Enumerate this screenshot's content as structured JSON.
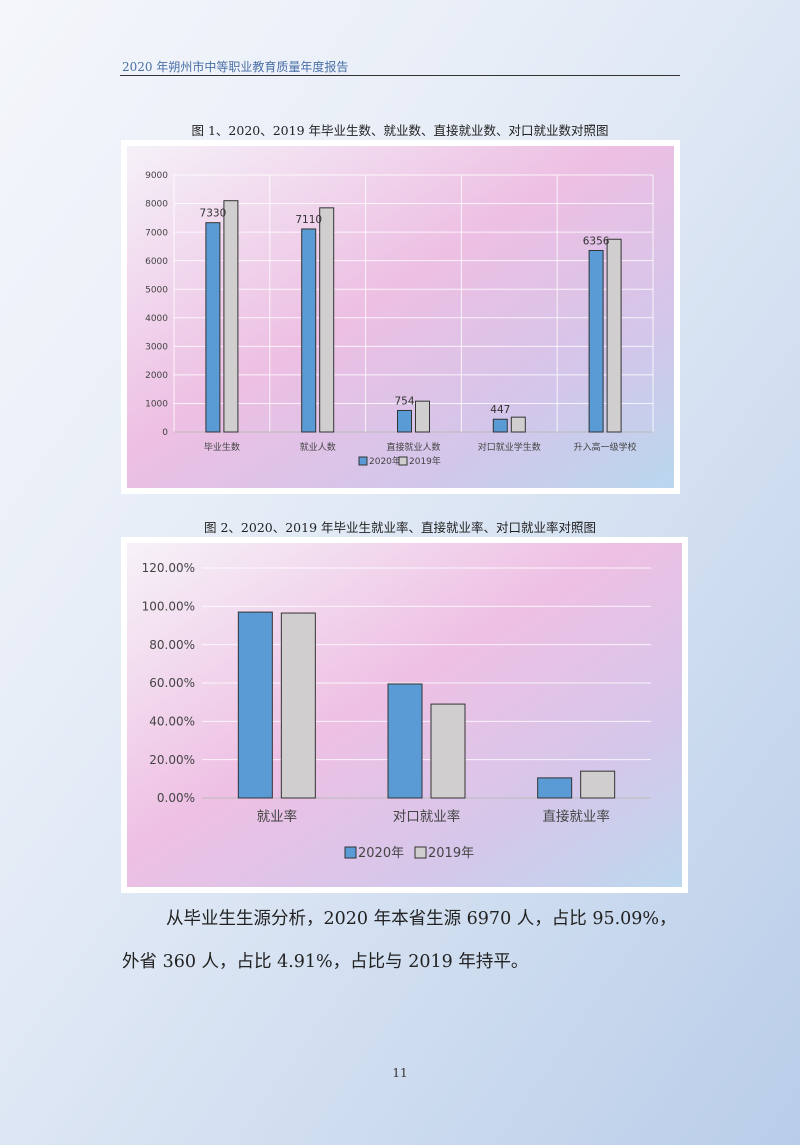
{
  "header": {
    "title": "2020 年朔州市中等职业教育质量年度报告"
  },
  "figure1": {
    "caption": "图 1、2020、2019 年毕业生数、就业数、直接就业数、对口就业数对照图"
  },
  "figure2": {
    "caption": "图 2、2020、2019 年毕业生就业率、直接就业率、对口就业率对照图"
  },
  "body": {
    "line1": "从毕业生生源分析，2020 年本省生源 6970 人，占比 95.09%，",
    "line2": "外省 360 人，占比 4.91%，占比与 2019 年持平。"
  },
  "footer": {
    "page_number": "11"
  },
  "colors": {
    "series_2020": "#5b9bd5",
    "series_2019": "#d0cece",
    "header_text": "#4a6fa5"
  },
  "chart_data": [
    {
      "type": "bar",
      "categories": [
        "毕业生数",
        "就业人数",
        "直接就业人数",
        "对口就业学生数",
        "升入高一级学校"
      ],
      "series": [
        {
          "name": "2020年",
          "values": [
            7330,
            7110,
            754,
            447,
            6356
          ]
        },
        {
          "name": "2019年",
          "values": [
            8100,
            7850,
            1080,
            520,
            6750
          ]
        }
      ],
      "data_labels": [
        "7330",
        "7110",
        "754",
        "447",
        "6356"
      ],
      "y_ticks": [
        "0",
        "1000",
        "2000",
        "3000",
        "4000",
        "5000",
        "6000",
        "7000",
        "8000",
        "9000"
      ],
      "ylim": [
        0,
        9000
      ],
      "grid": true,
      "legend": "bottom"
    },
    {
      "type": "bar",
      "categories": [
        "就业率",
        "对口就业率",
        "直接就业率"
      ],
      "series": [
        {
          "name": "2020年",
          "values": [
            97,
            59.5,
            10.5
          ]
        },
        {
          "name": "2019年",
          "values": [
            96.5,
            49,
            14
          ]
        }
      ],
      "y_ticks": [
        "0.00%",
        "20.00%",
        "40.00%",
        "60.00%",
        "80.00%",
        "100.00%",
        "120.00%"
      ],
      "ylim": [
        0,
        120
      ],
      "grid": true,
      "legend": "bottom"
    }
  ]
}
